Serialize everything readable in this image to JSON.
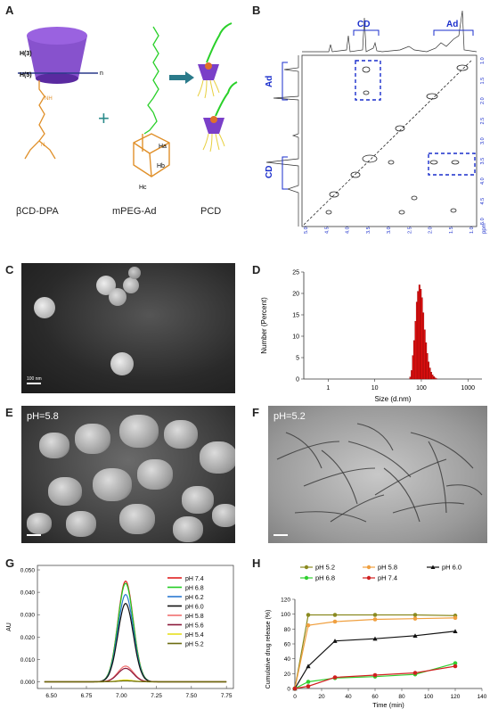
{
  "panels": {
    "A": {
      "label": "A",
      "captions": [
        "βCD-DPA",
        "mPEG-Ad",
        "PCD"
      ],
      "atom_labels": {
        "h3": "H(3)",
        "h5": "H(5)",
        "ha": "Ha",
        "hb": "Hb",
        "hc": "Hc",
        "n": "n",
        "plus": "+"
      }
    },
    "B": {
      "label": "B",
      "labels": {
        "cd_top": "CD",
        "ad_top": "Ad",
        "ad_left": "Ad",
        "cd_left": "CD",
        "ppm": "ppm"
      },
      "x_ticks": [
        "5.0",
        "4.5",
        "4.0",
        "3.5",
        "3.0",
        "2.5",
        "2.0",
        "1.5",
        "1.0"
      ],
      "y_ticks": [
        "1.0",
        "1.5",
        "2.0",
        "2.5",
        "3.0",
        "3.5",
        "4.0",
        "4.5",
        "5.0"
      ]
    },
    "C": {
      "label": "C",
      "scale": "100 nm"
    },
    "D": {
      "label": "D"
    },
    "E": {
      "label": "E",
      "ph": "pH=5.8",
      "scale": ""
    },
    "F": {
      "label": "F",
      "ph": "pH=5.2",
      "scale": ""
    },
    "G": {
      "label": "G"
    },
    "H": {
      "label": "H"
    }
  },
  "colors": {
    "nmr_dash": "#1a2ecc",
    "bar_red": "#e01010",
    "cd_purple": "#7a3fc8"
  },
  "chart_data": [
    {
      "id": "D",
      "type": "bar",
      "xlabel": "Size (d.nm)",
      "ylabel": "Number (Percent)",
      "x_scale": "log",
      "xlim": [
        0.3,
        2000
      ],
      "ylim": [
        0,
        25
      ],
      "x_ticks": [
        "1",
        "10",
        "100",
        "1000"
      ],
      "y_ticks": [
        "0",
        "5",
        "10",
        "15",
        "20",
        "25"
      ],
      "x": [
        58,
        62,
        66,
        70,
        75,
        80,
        85,
        91,
        97,
        103,
        110,
        118,
        126,
        134,
        143,
        153,
        163,
        174,
        186,
        198,
        212
      ],
      "values": [
        0.5,
        2.0,
        5.5,
        9.0,
        13.5,
        18.0,
        20.5,
        22.0,
        21.0,
        19.0,
        15.5,
        11.5,
        8.5,
        6.0,
        4.0,
        2.6,
        1.6,
        1.0,
        0.6,
        0.3,
        0.1
      ]
    },
    {
      "id": "G",
      "type": "line",
      "ylabel": "AU",
      "xlim": [
        6.4,
        7.8
      ],
      "ylim": [
        -0.003,
        0.052
      ],
      "x_ticks": [
        "6.50",
        "6.75",
        "7.00",
        "7.25",
        "7.50",
        "7.75"
      ],
      "y_ticks": [
        "0.000",
        "0.010",
        "0.020",
        "0.030",
        "0.040",
        "0.050"
      ],
      "peak_center": 7.03,
      "peak_width": 0.055,
      "series": [
        {
          "name": "pH 7.4",
          "color": "#e02020",
          "peak": 0.045
        },
        {
          "name": "pH 6.8",
          "color": "#22cc22",
          "peak": 0.044
        },
        {
          "name": "pH 6.2",
          "color": "#2a7ad0",
          "peak": 0.039
        },
        {
          "name": "pH 6.0",
          "color": "#111111",
          "peak": 0.035
        },
        {
          "name": "pH 5.8",
          "color": "#f07070",
          "peak": 0.007
        },
        {
          "name": "pH 5.6",
          "color": "#8b1a3a",
          "peak": 0.006
        },
        {
          "name": "pH 5.4",
          "color": "#e8e020",
          "peak": 0.0008
        },
        {
          "name": "pH 5.2",
          "color": "#6b6b10",
          "peak": 0.0004
        }
      ]
    },
    {
      "id": "H",
      "type": "line",
      "xlabel": "Time (min)",
      "ylabel": "Cumulative drug release (%)",
      "xlim": [
        0,
        140
      ],
      "ylim": [
        0,
        120
      ],
      "x_ticks": [
        "0",
        "20",
        "40",
        "60",
        "80",
        "100",
        "120",
        "140"
      ],
      "y_ticks": [
        "0",
        "20",
        "40",
        "60",
        "80",
        "100",
        "120"
      ],
      "x": [
        0,
        10,
        30,
        60,
        90,
        120
      ],
      "legend": "top",
      "series": [
        {
          "name": "pH 5.2",
          "color": "#8a8a20",
          "marker": "circle",
          "values": [
            0,
            99,
            99,
            99,
            99,
            98
          ]
        },
        {
          "name": "pH 5.8",
          "color": "#f0a040",
          "marker": "circle",
          "values": [
            0,
            85,
            90,
            93,
            94,
            95
          ]
        },
        {
          "name": "pH 6.0",
          "color": "#111111",
          "marker": "triangle",
          "values": [
            0,
            30,
            64,
            67,
            71,
            77
          ]
        },
        {
          "name": "pH 6.8",
          "color": "#30d030",
          "marker": "circle",
          "values": [
            0,
            9,
            14,
            16,
            19,
            34
          ]
        },
        {
          "name": "pH 7.4",
          "color": "#d02020",
          "marker": "circle",
          "values": [
            0,
            3,
            15,
            18,
            21,
            30
          ]
        }
      ]
    }
  ]
}
